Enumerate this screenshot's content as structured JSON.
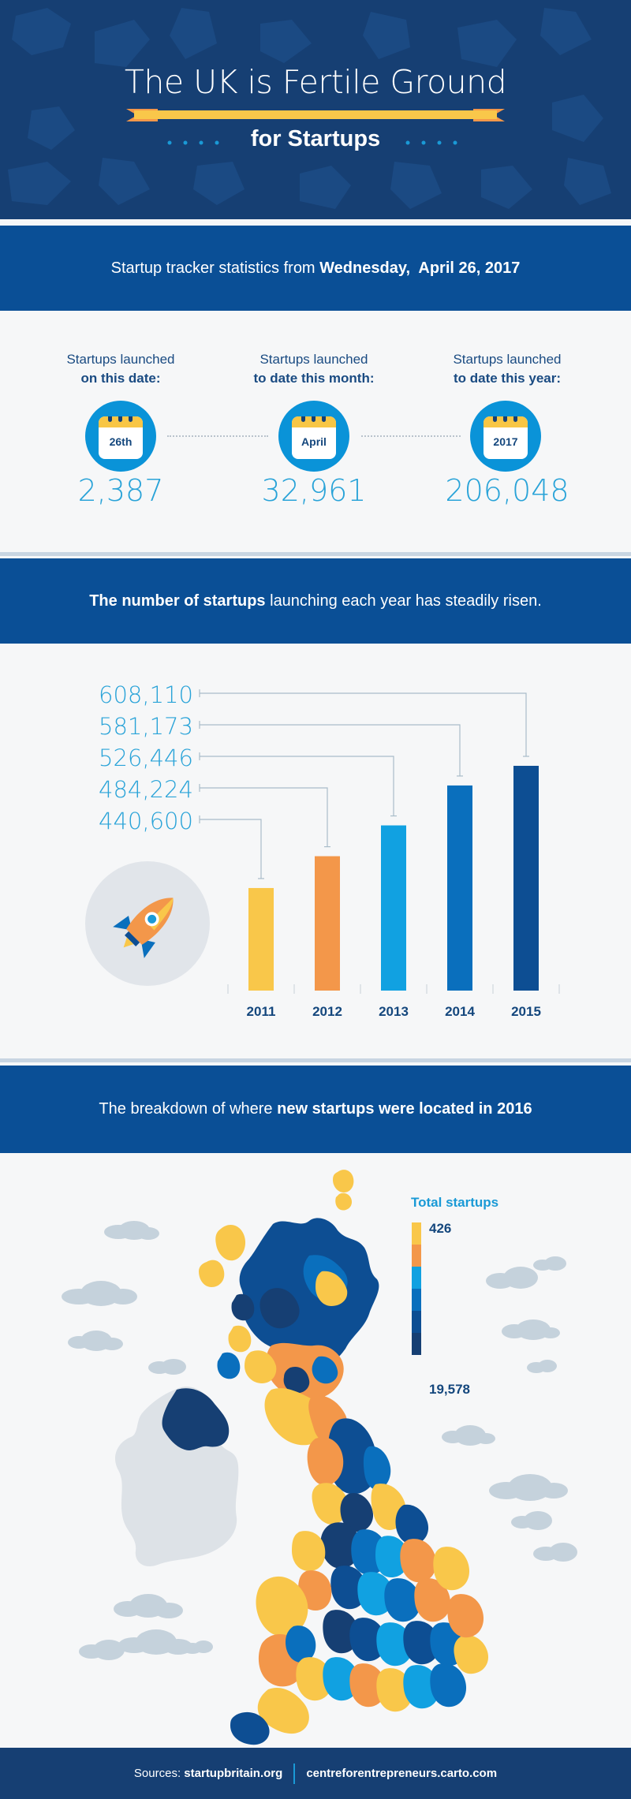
{
  "header": {
    "title": "The UK is Fertile Ground",
    "subtitle": "for Startups"
  },
  "banner1": {
    "prefix": "Startup tracker statistics from ",
    "date": "Wednesday,  April 26, 2017"
  },
  "stats": [
    {
      "label_line1": "Startups launched",
      "label_line2": "on this date:",
      "icon_text": "26th",
      "value": "2,387",
      "icon": "calendar-icon"
    },
    {
      "label_line1": "Startups launched",
      "label_line2": "to date this month:",
      "icon_text": "April",
      "value": "32,961",
      "icon": "calendar-icon"
    },
    {
      "label_line1": "Startups launched",
      "label_line2": "to date this year:",
      "icon_text": "2017",
      "value": "206,048",
      "icon": "calendar-icon"
    }
  ],
  "banner2": {
    "bold": "The number of startups",
    "rest": " launching each year has steadily risen."
  },
  "chart_data": {
    "type": "bar",
    "categories": [
      "2011",
      "2012",
      "2013",
      "2014",
      "2015"
    ],
    "values": [
      440600,
      484224,
      526446,
      581173,
      608110
    ],
    "value_labels": [
      "440,600",
      "484,224",
      "526,446",
      "581,173",
      "608,110"
    ],
    "colors": [
      "#f9c74a",
      "#f3974a",
      "#11a1e1",
      "#0a6fbd",
      "#0d4e93"
    ]
  },
  "banner3": {
    "prefix": "The breakdown of where ",
    "bold": "new startups were located in 2016"
  },
  "legend": {
    "title": "Total startups",
    "min": "426",
    "max": "19,578",
    "colors": [
      "#f9c74a",
      "#f3974a",
      "#11a1e1",
      "#0a6fbd",
      "#0d4e93",
      "#163f73"
    ]
  },
  "footer": {
    "label": "Sources: ",
    "source1": "startupbritain.org",
    "source2": "centreforentrepreneurs.carto.com"
  }
}
